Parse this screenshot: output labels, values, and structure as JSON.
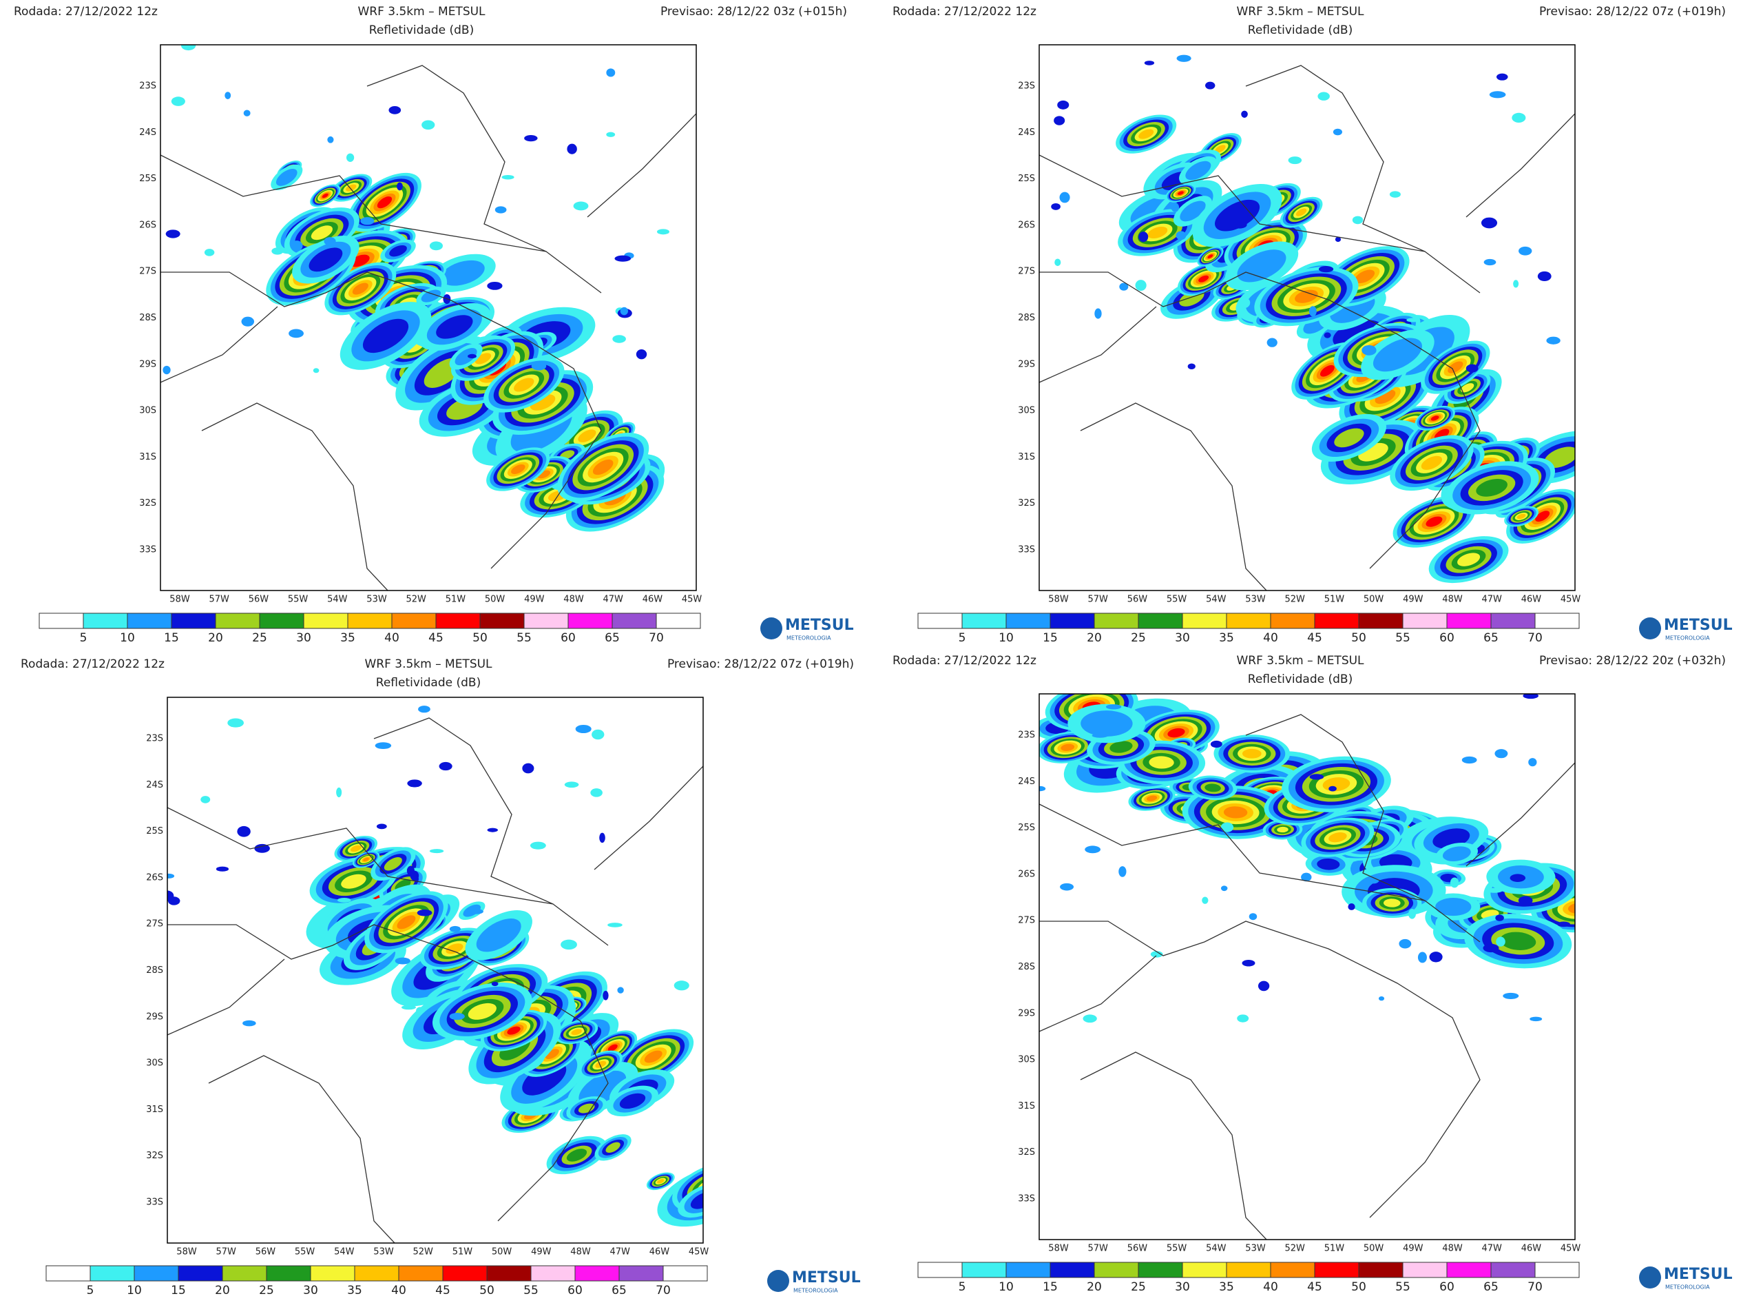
{
  "panels": [
    {
      "rodada": "Rodada: 27/12/2022 12z",
      "title": "WRF 3.5km – METSUL",
      "subtitle": "Refletividade (dB)",
      "previsao": "Previsao: 28/12/22 03z (+015h)"
    },
    {
      "rodada": "Rodada: 27/12/2022 12z",
      "title": "WRF 3.5km – METSUL",
      "subtitle": "Refletividade (dB)",
      "previsao": "Previsao: 28/12/22 07z (+019h)"
    },
    {
      "rodada": "Rodada: 27/12/2022 12z",
      "title": "WRF 3.5km – METSUL",
      "subtitle": "Refletividade (dB)",
      "previsao": "Previsao: 28/12/22 07z (+019h)"
    },
    {
      "rodada": "Rodada: 27/12/2022 12z",
      "title": "WRF 3.5km – METSUL",
      "subtitle": "Refletividade (dB)",
      "previsao": "Previsao: 28/12/22 20z (+032h)"
    }
  ],
  "lat_labels": [
    "23S",
    "24S",
    "25S",
    "26S",
    "27S",
    "28S",
    "29S",
    "30S",
    "31S",
    "32S",
    "33S"
  ],
  "lon_labels": [
    "58W",
    "57W",
    "56W",
    "55W",
    "54W",
    "53W",
    "52W",
    "51W",
    "50W",
    "49W",
    "48W",
    "47W",
    "46W",
    "45W"
  ],
  "colorbar": {
    "labels": [
      5,
      10,
      15,
      20,
      25,
      30,
      35,
      40,
      45,
      50,
      55,
      60,
      65,
      70
    ],
    "colors": [
      "#ffffff",
      "#3ff0f0",
      "#1e9bff",
      "#0a14d8",
      "#a0d21e",
      "#1f9a1f",
      "#f5f532",
      "#ffc400",
      "#ff8a00",
      "#ff0000",
      "#a00000",
      "#ffc8f0",
      "#ff14f0",
      "#9650d2",
      "#ffffff"
    ]
  },
  "logo": {
    "name": "METSUL",
    "tagline": "METEOROLOGIA"
  }
}
